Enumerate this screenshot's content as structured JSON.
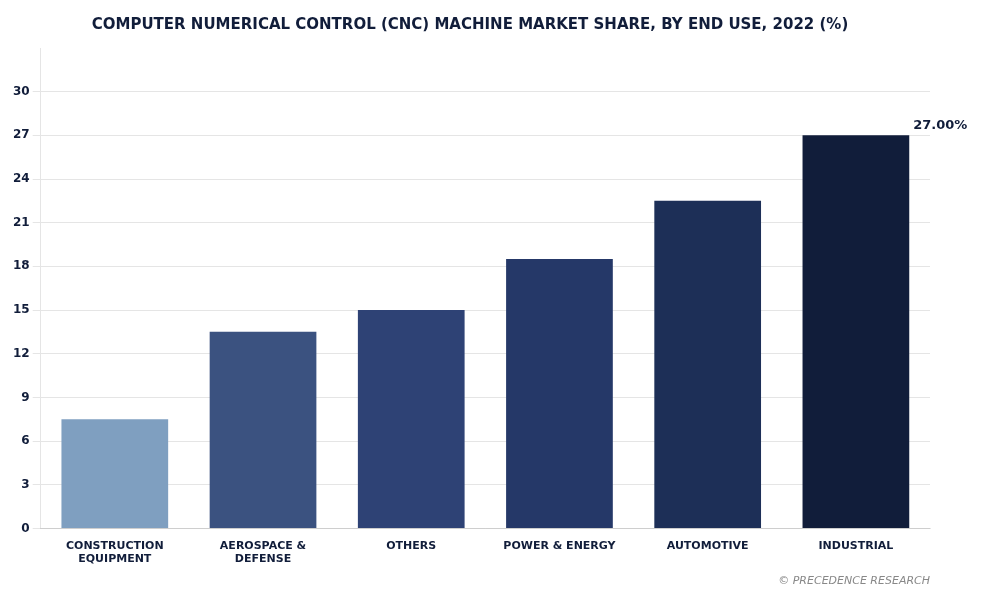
{
  "chart_data": {
    "type": "bar",
    "title": "COMPUTER NUMERICAL CONTROL (CNC) MACHINE MARKET SHARE, BY END USE, 2022 (%)",
    "categories": [
      "CONSTRUCTION\nEQUIPMENT",
      "AEROSPACE &\nDEFENSE",
      "OTHERS",
      "POWER & ENERGY",
      "AUTOMOTIVE",
      "INDUSTRIAL"
    ],
    "values": [
      7.5,
      13.5,
      15.0,
      18.5,
      22.5,
      27.0
    ],
    "colors": [
      "#7f9fc0",
      "#3b5280",
      "#2e4275",
      "#253868",
      "#1d2f57",
      "#111d3a"
    ],
    "ylim": [
      0,
      33
    ],
    "yticks": [
      0,
      3,
      6,
      9,
      12,
      15,
      18,
      21,
      24,
      27,
      30
    ],
    "grid": true,
    "annotations": [
      {
        "text": "27.00%",
        "category": "INDUSTRIAL",
        "value": 27.0
      }
    ],
    "caption": "© PRECEDENCE RESEARCH"
  }
}
